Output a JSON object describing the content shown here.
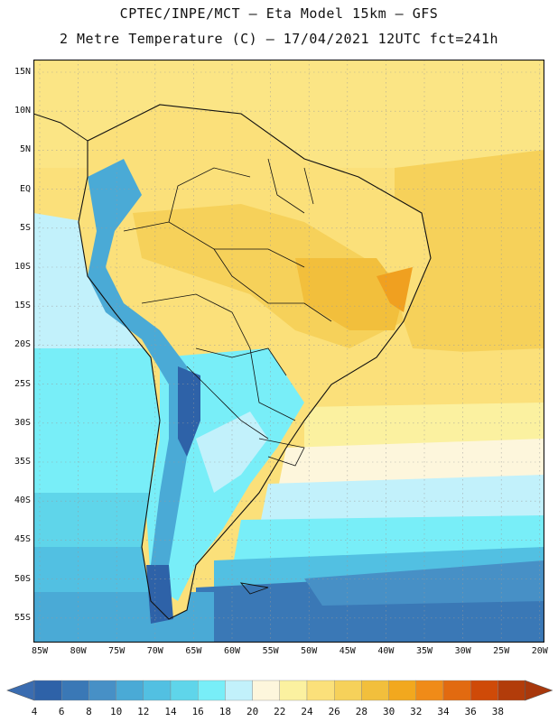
{
  "header": {
    "line1": "CPTEC/INPE/MCT –  Eta Model 15km – GFS",
    "line2": "2 Metre Temperature (C) – 17/04/2021 12UTC fct=241h"
  },
  "map": {
    "lat_labels": [
      "15N",
      "10N",
      "5N",
      "EQ",
      "5S",
      "10S",
      "15S",
      "20S",
      "25S",
      "30S",
      "35S",
      "40S",
      "45S",
      "50S",
      "55S"
    ],
    "lon_labels": [
      "85W",
      "80W",
      "75W",
      "70W",
      "65W",
      "60W",
      "55W",
      "50W",
      "45W",
      "40W",
      "35W",
      "30W",
      "25W",
      "20W"
    ]
  },
  "colorbar": {
    "labels": [
      "4",
      "6",
      "8",
      "10",
      "12",
      "14",
      "16",
      "18",
      "20",
      "22",
      "24",
      "26",
      "28",
      "30",
      "32",
      "34",
      "36",
      "38"
    ],
    "colors": [
      "#2e62a8",
      "#3a78b6",
      "#4790c6",
      "#4aaad6",
      "#52c0e2",
      "#5fd5ea",
      "#78eef8",
      "#c2f1fb",
      "#fdf6dc",
      "#fbf1a0",
      "#fbe07a",
      "#f6d15a",
      "#f2bf3c",
      "#f2a81e",
      "#f08b18",
      "#e26a10",
      "#cf4a08",
      "#b23c0a"
    ]
  }
}
